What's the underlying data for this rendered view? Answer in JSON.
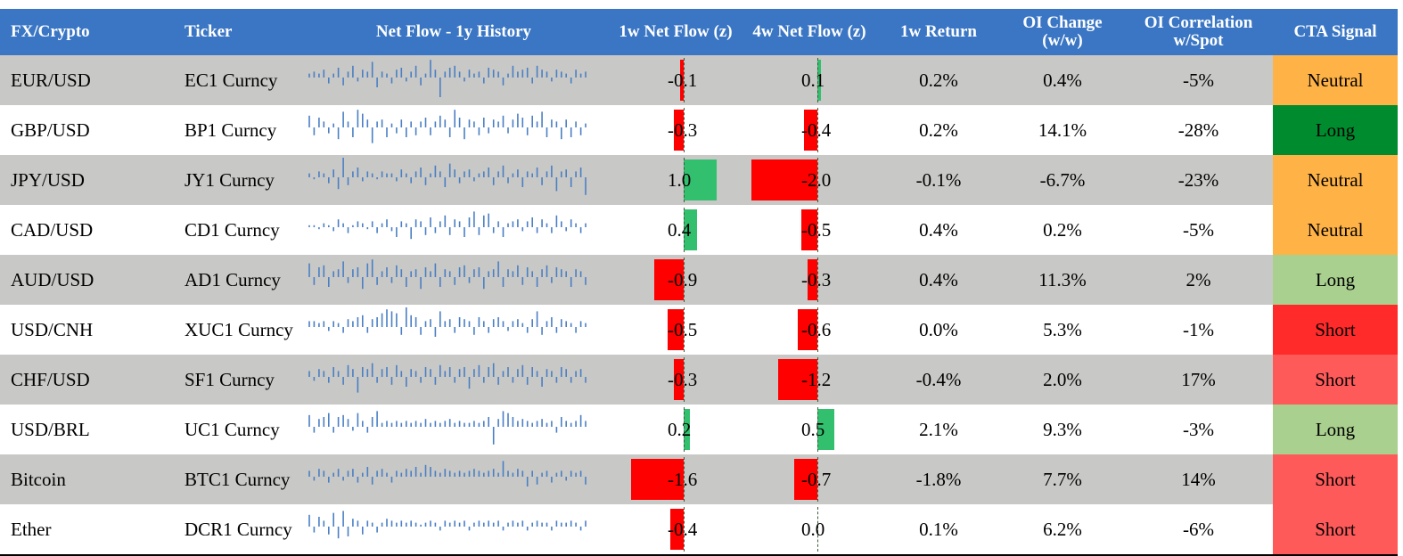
{
  "colors": {
    "header_bg": "#3a76c4",
    "row_grey": "#c8c8c6",
    "row_white": "#ffffff",
    "spark": "#4a7fc4",
    "bar_negative": "#ff0000",
    "bar_positive": "#33c06e",
    "signal": {
      "Neutral": "#ffb347",
      "Long_strong": "#008c2e",
      "Long_light": "#a9d08e",
      "Short_strong": "#ff2a2a",
      "Short_light": "#ff5a5a"
    }
  },
  "header": {
    "fx": "FX/Crypto",
    "ticker": "Ticker",
    "history": "Net Flow - 1y History",
    "w1": "1w Net Flow (z)",
    "w4": "4w Net Flow (z)",
    "ret": "1w Return",
    "oi": "OI Change (w/w)",
    "corr": "OI Correlation w/Spot",
    "cta": "CTA Signal"
  },
  "rows": [
    {
      "name": "EUR/USD",
      "ticker": "EC1 Curncy",
      "w1": "-0.1",
      "w1v": -0.1,
      "w4": "0.1",
      "w4v": 0.1,
      "ret": "0.2%",
      "oi": "0.4%",
      "corr": "-5%",
      "signal": "Neutral",
      "signal_color": "#ffb347",
      "signal_text": "#000000"
    },
    {
      "name": "GBP/USD",
      "ticker": "BP1 Curncy",
      "w1": "-0.3",
      "w1v": -0.3,
      "w4": "-0.4",
      "w4v": -0.4,
      "ret": "0.2%",
      "oi": "14.1%",
      "corr": "-28%",
      "signal": "Long",
      "signal_color": "#008c2e",
      "signal_text": "#000000"
    },
    {
      "name": "JPY/USD",
      "ticker": "JY1 Curncy",
      "w1": "1.0",
      "w1v": 1.0,
      "w4": "-2.0",
      "w4v": -2.0,
      "ret": "-0.1%",
      "oi": "-6.7%",
      "corr": "-23%",
      "signal": "Neutral",
      "signal_color": "#ffb347",
      "signal_text": "#000000"
    },
    {
      "name": "CAD/USD",
      "ticker": "CD1 Curncy",
      "w1": "0.4",
      "w1v": 0.4,
      "w4": "-0.5",
      "w4v": -0.5,
      "ret": "0.4%",
      "oi": "0.2%",
      "corr": "-5%",
      "signal": "Neutral",
      "signal_color": "#ffb347",
      "signal_text": "#000000"
    },
    {
      "name": "AUD/USD",
      "ticker": "AD1 Curncy",
      "w1": "-0.9",
      "w1v": -0.9,
      "w4": "-0.3",
      "w4v": -0.3,
      "ret": "0.4%",
      "oi": "11.3%",
      "corr": "2%",
      "signal": "Long",
      "signal_color": "#a9d08e",
      "signal_text": "#000000"
    },
    {
      "name": "USD/CNH",
      "ticker": "XUC1 Curncy",
      "w1": "-0.5",
      "w1v": -0.5,
      "w4": "-0.6",
      "w4v": -0.6,
      "ret": "0.0%",
      "oi": "5.3%",
      "corr": "-1%",
      "signal": "Short",
      "signal_color": "#ff2a2a",
      "signal_text": "#000000"
    },
    {
      "name": "CHF/USD",
      "ticker": "SF1 Curncy",
      "w1": "-0.3",
      "w1v": -0.3,
      "w4": "-1.2",
      "w4v": -1.2,
      "ret": "-0.4%",
      "oi": "2.0%",
      "corr": "17%",
      "signal": "Short",
      "signal_color": "#ff5a5a",
      "signal_text": "#000000"
    },
    {
      "name": "USD/BRL",
      "ticker": "UC1 Curncy",
      "w1": "0.2",
      "w1v": 0.2,
      "w4": "0.5",
      "w4v": 0.5,
      "ret": "2.1%",
      "oi": "9.3%",
      "corr": "-3%",
      "signal": "Long",
      "signal_color": "#a9d08e",
      "signal_text": "#000000"
    },
    {
      "name": "Bitcoin",
      "ticker": "BTC1 Curncy",
      "w1": "-1.6",
      "w1v": -1.6,
      "w4": "-0.7",
      "w4v": -0.7,
      "ret": "-1.8%",
      "oi": "7.7%",
      "corr": "14%",
      "signal": "Short",
      "signal_color": "#ff5a5a",
      "signal_text": "#000000"
    },
    {
      "name": "Ether",
      "ticker": "DCR1 Curncy",
      "w1": "-0.4",
      "w1v": -0.4,
      "w4": "0.0",
      "w4v": 0.0,
      "ret": "0.1%",
      "oi": "6.2%",
      "corr": "-6%",
      "signal": "Short",
      "signal_color": "#ff5a5a",
      "signal_text": "#000000"
    }
  ],
  "sparklines": [
    [
      0.2,
      0.3,
      0.2,
      0.4,
      -0.3,
      0.2,
      0.5,
      -0.4,
      0.3,
      0.6,
      -0.2,
      0.4,
      0.3,
      0.8,
      -0.5,
      0.3,
      0.2,
      -0.3,
      0.4,
      0.5,
      -0.2,
      0.3,
      0.6,
      -0.4,
      0.2,
      0.9,
      0.4,
      -1.0,
      0.3,
      0.5,
      0.6,
      0.3,
      -0.2,
      0.4,
      0.2,
      0.3,
      -0.3,
      0.5,
      0.4,
      0.3,
      -0.4,
      0.2,
      0.6,
      0.3,
      0.4,
      0.5,
      -0.3,
      0.6,
      0.4,
      0.3,
      -0.2,
      0.4,
      0.3,
      0.2,
      -0.3,
      0.4,
      0.2,
      0.3
    ],
    [
      0.6,
      -0.4,
      0.5,
      0.3,
      -0.3,
      0.2,
      -0.6,
      0.8,
      0.3,
      -0.5,
      0.9,
      0.7,
      0.4,
      -0.8,
      0.3,
      0.4,
      -0.5,
      0.2,
      -0.3,
      0.4,
      -0.5,
      0.3,
      -0.4,
      0.3,
      0.5,
      -0.4,
      0.3,
      0.6,
      0.4,
      -0.5,
      0.9,
      0.5,
      -0.6,
      0.4,
      0.3,
      -0.4,
      0.5,
      -0.3,
      0.4,
      0.3,
      0.6,
      -0.3,
      0.4,
      0.7,
      0.5,
      -0.4,
      0.6,
      0.3,
      0.8,
      -0.5,
      0.4,
      0.3,
      -0.6,
      0.4,
      -0.5,
      0.3,
      -0.4,
      0.2
    ],
    [
      0.2,
      -0.1,
      0.3,
      0.2,
      -0.3,
      0.4,
      -0.6,
      1.0,
      -0.4,
      0.3,
      0.5,
      -0.2,
      0.3,
      0.2,
      -0.1,
      0.3,
      0.2,
      0.2,
      -0.2,
      0.4,
      0.2,
      -0.3,
      0.3,
      0.5,
      -0.4,
      0.2,
      0.6,
      0.3,
      -0.5,
      0.7,
      0.4,
      -0.3,
      0.3,
      0.4,
      -0.2,
      0.2,
      0.3,
      0.5,
      -0.4,
      0.3,
      0.6,
      -0.3,
      0.2,
      0.4,
      -0.5,
      0.3,
      0.2,
      0.5,
      -0.4,
      0.3,
      0.6,
      -0.7,
      0.3,
      0.4,
      -0.5,
      0.3,
      0.5,
      -0.9
    ],
    [
      0.1,
      0.1,
      -0.1,
      0.2,
      0.1,
      -0.2,
      0.4,
      0.2,
      -0.3,
      0.1,
      0.3,
      0.2,
      -0.1,
      0.3,
      -0.3,
      0.2,
      0.4,
      -0.2,
      -0.5,
      0.3,
      0.2,
      -0.6,
      0.4,
      0.3,
      -0.4,
      0.5,
      -0.3,
      0.3,
      0.6,
      -0.4,
      0.4,
      0.3,
      -0.5,
      0.5,
      0.8,
      -0.4,
      0.6,
      0.7,
      -0.3,
      0.3,
      -0.5,
      0.2,
      0.3,
      0.4,
      -0.2,
      0.3,
      0.5,
      -0.3,
      0.4,
      0.2,
      -0.3,
      0.6,
      0.3,
      -0.2,
      0.4,
      0.2,
      -0.3,
      0.2
    ],
    [
      0.7,
      -0.4,
      0.5,
      0.6,
      -0.5,
      0.3,
      0.4,
      0.8,
      -0.3,
      0.4,
      0.5,
      -0.6,
      0.7,
      0.9,
      -0.4,
      0.3,
      0.5,
      -0.3,
      0.6,
      0.4,
      -0.5,
      0.3,
      0.4,
      -0.6,
      0.5,
      0.3,
      0.7,
      -0.5,
      0.4,
      0.3,
      -0.4,
      0.5,
      0.6,
      -0.3,
      0.4,
      0.5,
      -0.6,
      0.3,
      0.4,
      0.8,
      -0.5,
      0.4,
      0.3,
      0.6,
      -0.4,
      0.5,
      0.3,
      -0.5,
      0.4,
      0.6,
      -0.3,
      0.5,
      0.4,
      0.3,
      -0.5,
      0.4,
      0.3,
      -0.4
    ],
    [
      0.3,
      0.3,
      0.2,
      0.3,
      -0.2,
      0.3,
      0.2,
      -0.3,
      0.4,
      0.3,
      0.5,
      0.6,
      -0.3,
      0.4,
      0.5,
      0.7,
      0.9,
      0.8,
      0.7,
      -0.4,
      1.0,
      0.6,
      0.5,
      -0.4,
      0.3,
      0.4,
      -0.5,
      0.8,
      0.3,
      0.4,
      -0.3,
      0.5,
      0.4,
      0.3,
      -0.4,
      0.5,
      0.3,
      -0.3,
      0.4,
      0.5,
      0.3,
      -0.2,
      0.3,
      0.4,
      0.2,
      -0.3,
      0.4,
      0.8,
      -0.4,
      0.3,
      0.5,
      -0.3,
      0.4,
      0.3,
      0.2,
      -0.3,
      0.3,
      0.2
    ],
    [
      0.3,
      -0.2,
      0.4,
      0.3,
      -0.3,
      0.5,
      0.3,
      -0.4,
      0.6,
      0.4,
      -0.8,
      0.5,
      0.4,
      0.7,
      -0.3,
      0.4,
      0.5,
      -0.4,
      0.6,
      0.3,
      -0.5,
      0.4,
      0.3,
      -0.3,
      0.5,
      0.4,
      -0.4,
      0.6,
      0.3,
      0.5,
      -0.3,
      0.4,
      0.5,
      -0.6,
      0.4,
      0.6,
      -0.3,
      0.5,
      0.7,
      -0.4,
      0.3,
      0.5,
      -0.3,
      0.4,
      0.6,
      -0.4,
      0.5,
      0.3,
      -0.5,
      0.4,
      0.3,
      -0.3,
      0.5,
      0.4,
      -0.3,
      0.3,
      0.4,
      -0.3
    ],
    [
      0.6,
      -0.3,
      0.4,
      0.5,
      0.7,
      -0.3,
      0.5,
      0.6,
      0.4,
      -0.2,
      0.7,
      0.3,
      -0.3,
      0.5,
      0.8,
      0.2,
      0.3,
      0.2,
      0.3,
      0.2,
      0.3,
      0.2,
      0.3,
      0.2,
      0.4,
      0.2,
      0.3,
      0.2,
      0.3,
      0.4,
      0.2,
      0.3,
      0.2,
      0.2,
      0.3,
      0.2,
      0.3,
      0.5,
      -0.9,
      0.4,
      0.8,
      0.7,
      0.5,
      0.3,
      0.4,
      0.3,
      0.2,
      0.3,
      0.4,
      0.2,
      0.3,
      -0.3,
      0.5,
      0.3,
      0.2,
      0.3,
      0.6,
      0.3
    ],
    [
      0.3,
      -0.2,
      0.4,
      0.3,
      -0.3,
      0.2,
      0.4,
      -0.2,
      0.3,
      0.4,
      -0.3,
      0.2,
      0.5,
      -0.4,
      0.3,
      0.4,
      0.2,
      -0.3,
      0.3,
      0.2,
      0.4,
      0.3,
      0.5,
      0.2,
      0.6,
      0.5,
      0.3,
      0.2,
      0.4,
      0.3,
      0.2,
      0.3,
      0.2,
      0.3,
      0.4,
      0.3,
      0.2,
      0.3,
      0.4,
      0.2,
      0.8,
      0.3,
      0.2,
      0.4,
      0.3,
      -0.5,
      0.3,
      -0.4,
      0.2,
      0.3,
      -0.3,
      0.2,
      0.3,
      -0.2,
      0.3,
      0.2,
      0.3,
      -0.4
    ],
    [
      0.6,
      -0.3,
      0.5,
      0.3,
      -0.4,
      0.7,
      -0.6,
      0.8,
      -0.5,
      0.4,
      0.3,
      -0.4,
      0.3,
      0.2,
      -0.3,
      0.2,
      0.4,
      0.3,
      0.2,
      0.3,
      0.2,
      0.3,
      0.2,
      0.1,
      0.2,
      0.3,
      0.2,
      -0.2,
      0.3,
      0.2,
      0.3,
      0.2,
      0.3,
      -0.2,
      0.2,
      0.3,
      0.2,
      0.3,
      0.2,
      0.3,
      -0.2,
      0.2,
      0.3,
      0.2,
      0.3,
      -0.2,
      0.2,
      0.3,
      0.2,
      0.2,
      -0.2,
      0.3,
      0.2,
      0.2,
      0.3,
      0.2,
      -0.2,
      0.3
    ]
  ]
}
